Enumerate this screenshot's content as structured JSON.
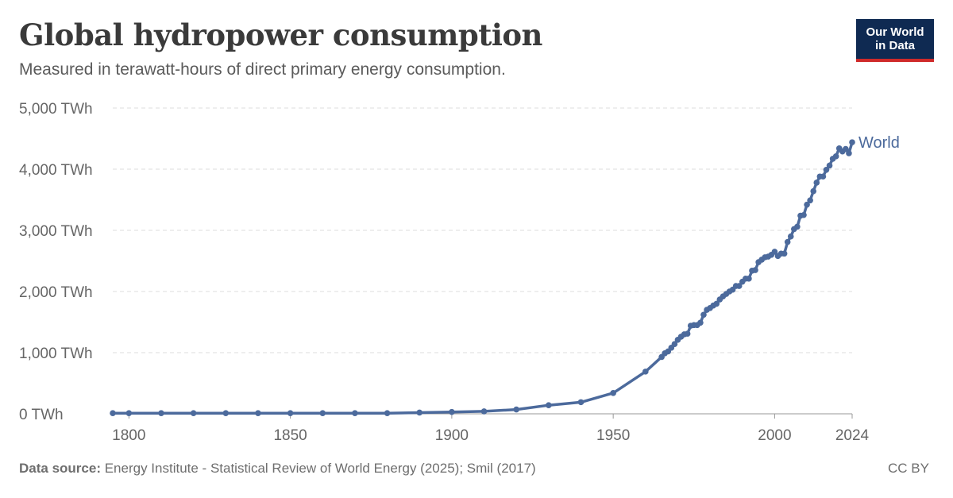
{
  "header": {
    "title": "Global hydropower consumption",
    "subtitle": "Measured in terawatt-hours of direct primary energy consumption.",
    "logo_line1": "Our World",
    "logo_line2": "in Data"
  },
  "footer": {
    "source_label": "Data source:",
    "source_text": "Energy Institute - Statistical Review of World Energy (2025); Smil (2017)",
    "license": "CC BY"
  },
  "colors": {
    "series": "#4c6a9c",
    "grid": "#dddddd",
    "logo_bg": "#0f2a52",
    "logo_accent": "#cf2a2a"
  },
  "chart_data": {
    "type": "line",
    "title": "Global hydropower consumption",
    "subtitle": "Measured in terawatt-hours of direct primary energy consumption.",
    "xlabel": "",
    "ylabel": "",
    "xlim": [
      1795,
      2024
    ],
    "ylim": [
      0,
      5000
    ],
    "unit": "TWh",
    "grid": "horizontal dashed",
    "x_ticks": [
      {
        "value": 1800,
        "label": "1800"
      },
      {
        "value": 1850,
        "label": "1850"
      },
      {
        "value": 1900,
        "label": "1900"
      },
      {
        "value": 1950,
        "label": "1950"
      },
      {
        "value": 2000,
        "label": "2000"
      },
      {
        "value": 2024,
        "label": "2024"
      }
    ],
    "y_ticks": [
      {
        "value": 0,
        "label": "0 TWh"
      },
      {
        "value": 1000,
        "label": "1,000 TWh"
      },
      {
        "value": 2000,
        "label": "2,000 TWh"
      },
      {
        "value": 3000,
        "label": "3,000 TWh"
      },
      {
        "value": 4000,
        "label": "4,000 TWh"
      },
      {
        "value": 5000,
        "label": "5,000 TWh"
      }
    ],
    "series": [
      {
        "name": "World",
        "x": [
          1795,
          1800,
          1810,
          1820,
          1830,
          1840,
          1850,
          1860,
          1870,
          1880,
          1890,
          1900,
          1910,
          1920,
          1930,
          1940,
          1950,
          1960,
          1965,
          1966,
          1967,
          1968,
          1969,
          1970,
          1971,
          1972,
          1973,
          1974,
          1975,
          1976,
          1977,
          1978,
          1979,
          1980,
          1981,
          1982,
          1983,
          1984,
          1985,
          1986,
          1987,
          1988,
          1989,
          1990,
          1991,
          1992,
          1993,
          1994,
          1995,
          1996,
          1997,
          1998,
          1999,
          2000,
          2001,
          2002,
          2003,
          2004,
          2005,
          2006,
          2007,
          2008,
          2009,
          2010,
          2011,
          2012,
          2013,
          2014,
          2015,
          2016,
          2017,
          2018,
          2019,
          2020,
          2021,
          2022,
          2023,
          2024
        ],
        "values": [
          10,
          10,
          10,
          10,
          10,
          10,
          10,
          10,
          10,
          10,
          20,
          30,
          40,
          70,
          140,
          190,
          340,
          690,
          930,
          990,
          1020,
          1080,
          1140,
          1210,
          1260,
          1300,
          1310,
          1440,
          1450,
          1450,
          1490,
          1620,
          1700,
          1730,
          1770,
          1800,
          1870,
          1920,
          1960,
          2000,
          2030,
          2090,
          2090,
          2160,
          2210,
          2210,
          2340,
          2350,
          2480,
          2520,
          2560,
          2570,
          2600,
          2650,
          2580,
          2620,
          2620,
          2810,
          2900,
          3020,
          3060,
          3240,
          3250,
          3420,
          3490,
          3640,
          3780,
          3880,
          3880,
          3990,
          4060,
          4170,
          4210,
          4340,
          4290,
          4330,
          4260,
          4440
        ]
      }
    ]
  }
}
